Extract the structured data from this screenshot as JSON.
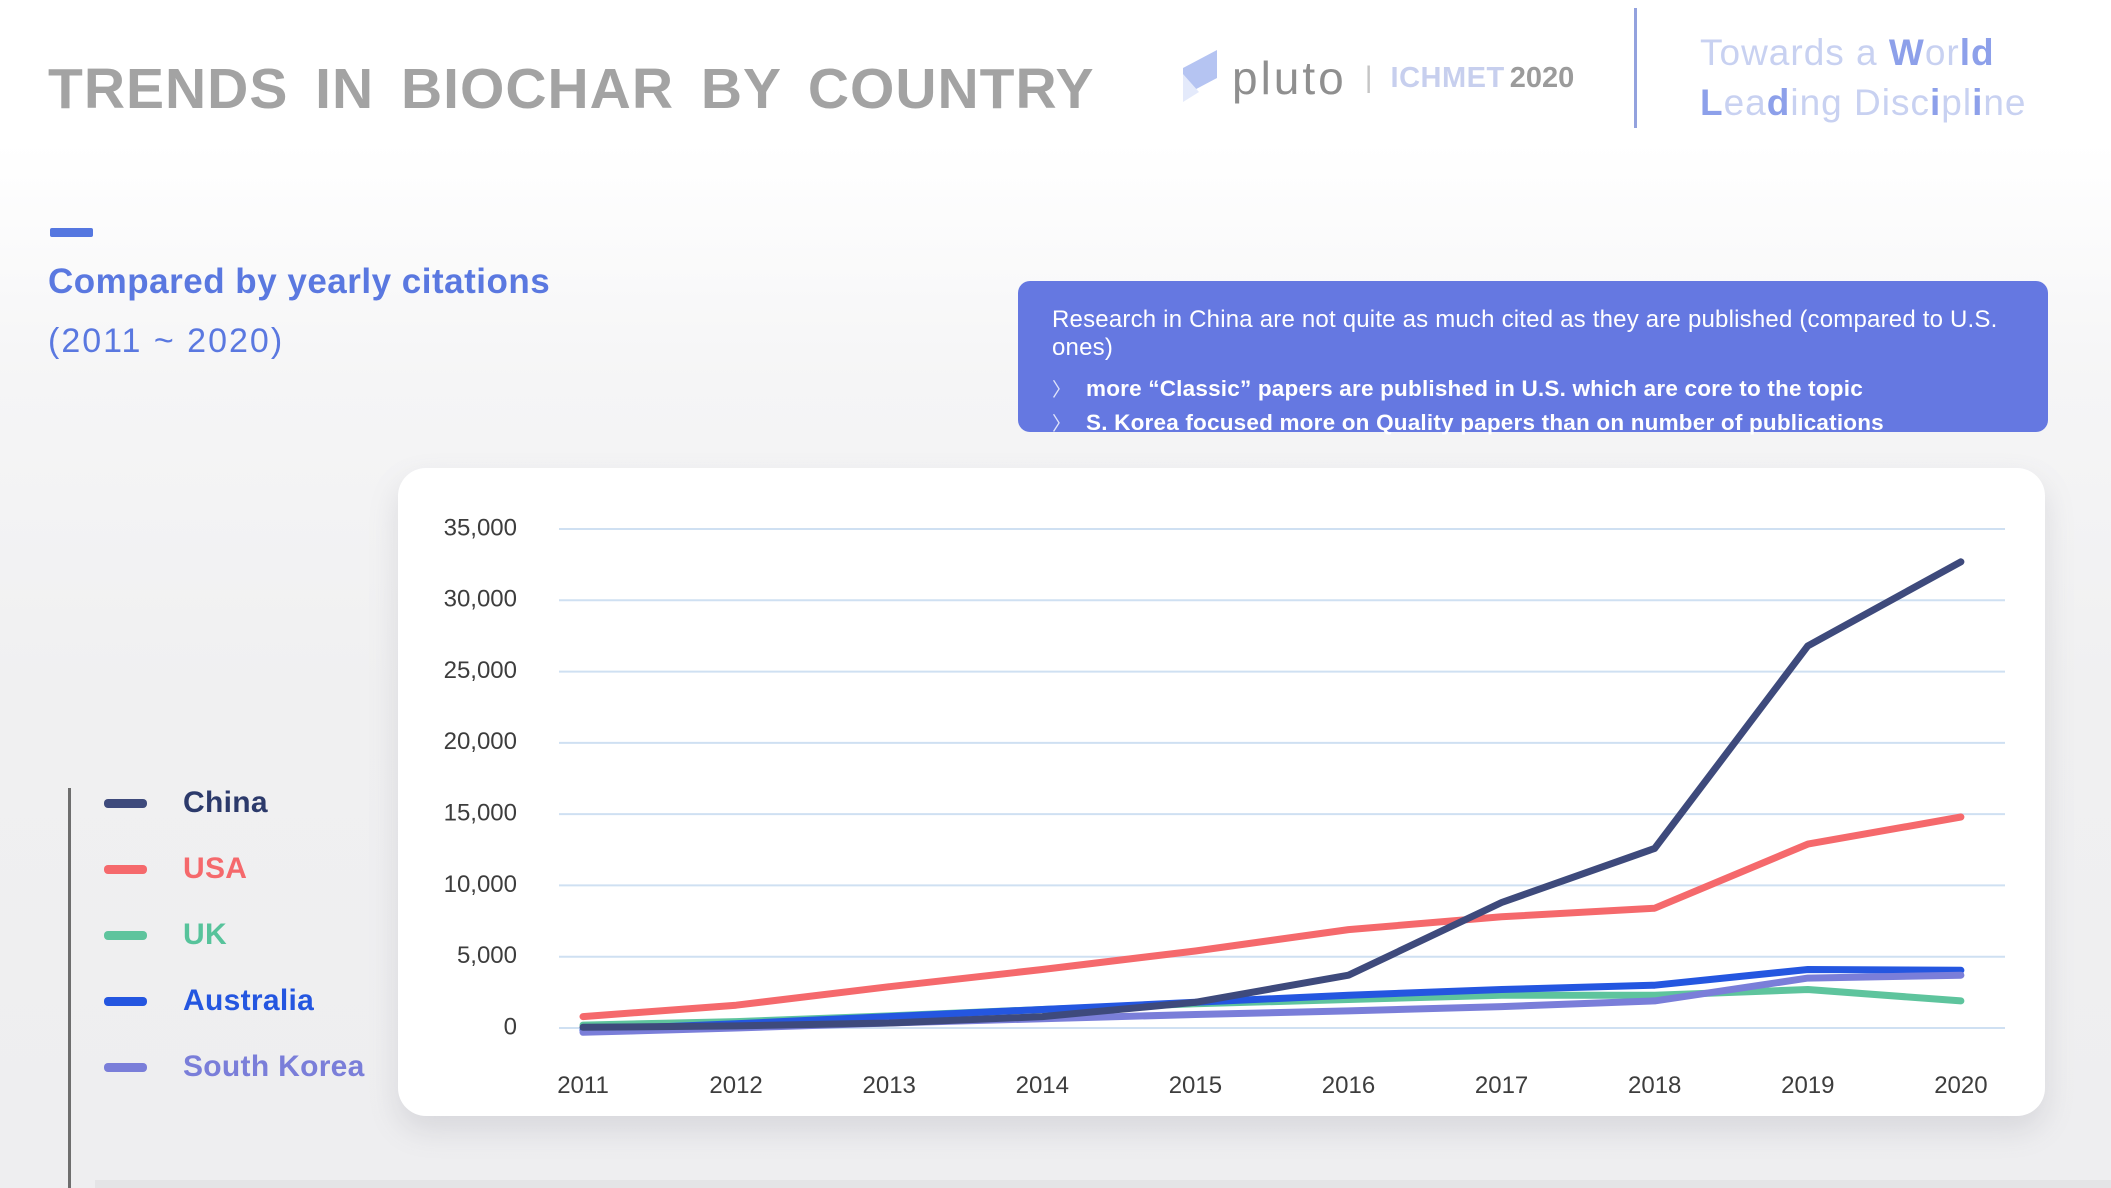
{
  "header": {
    "title": "TRENDS IN BIOCHAR BY COUNTRY",
    "logo": {
      "icon": "pluto-flag-icon",
      "name": "pluto",
      "divider": "|",
      "event": "ICHMET",
      "year": "2020"
    },
    "tagline": {
      "light_color": "#c8d1f1",
      "dark_color": "#8da0ea",
      "line1": [
        {
          "text": "Towards a ",
          "tone": "light"
        },
        {
          "text": "W",
          "tone": "dark"
        },
        {
          "text": "or",
          "tone": "light"
        },
        {
          "text": "ld",
          "tone": "dark"
        }
      ],
      "line2": [
        {
          "text": "L",
          "tone": "dark"
        },
        {
          "text": "ea",
          "tone": "light"
        },
        {
          "text": "d",
          "tone": "dark"
        },
        {
          "text": "ing ",
          "tone": "light"
        },
        {
          "text": "Disc",
          "tone": "light"
        },
        {
          "text": "i",
          "tone": "dark"
        },
        {
          "text": "pl",
          "tone": "light"
        },
        {
          "text": "i",
          "tone": "dark"
        },
        {
          "text": "ne",
          "tone": "light"
        }
      ]
    }
  },
  "subheader": {
    "heading": "Compared by yearly citations",
    "range": "(2011 ~ 2020)",
    "accent_color": "#5577e0"
  },
  "callout": {
    "bg_color": "#6578e1",
    "title": "Research in China are not quite as much cited as they are published (compared to U.S. ones)",
    "bullet_icon": "〉",
    "bullets": [
      "more “Classic” papers are published in U.S. which are core to the topic",
      "S. Korea focused more on Quality papers than on number of publications"
    ]
  },
  "chart_data": {
    "type": "line",
    "x": [
      2011,
      2012,
      2013,
      2014,
      2015,
      2016,
      2017,
      2018,
      2019,
      2020
    ],
    "series": [
      {
        "name": "UK",
        "color": "#5ec49d",
        "values": [
          200,
          450,
          850,
          1300,
          1700,
          2000,
          2300,
          2300,
          2700,
          1900
        ]
      },
      {
        "name": "Australia",
        "color": "#2456e0",
        "values": [
          -150,
          300,
          800,
          1300,
          1800,
          2300,
          2700,
          3000,
          4100,
          4050
        ]
      },
      {
        "name": "South Korea",
        "color": "#7a7ed9",
        "values": [
          -300,
          0,
          350,
          650,
          950,
          1200,
          1500,
          1900,
          3500,
          3700
        ]
      },
      {
        "name": "USA",
        "color": "#f5696c",
        "values": [
          800,
          1600,
          2900,
          4100,
          5400,
          6900,
          7800,
          8400,
          12900,
          14800
        ]
      },
      {
        "name": "China",
        "color": "#3e4a7c",
        "values": [
          50,
          150,
          350,
          800,
          1800,
          3700,
          8800,
          12600,
          26800,
          32700
        ]
      }
    ],
    "ylim": [
      0,
      35000
    ],
    "ytick_step": 5000,
    "grid": true,
    "gridline_color": "#cfe0f2",
    "tick_label_color": "#3d3d3d",
    "legend_position": "left",
    "legend_order": [
      "China",
      "USA",
      "UK",
      "Australia",
      "South Korea"
    ],
    "legend_label_colors": {
      "China": "#2c3a6b",
      "USA": "#f5696c",
      "UK": "#57c39b",
      "Australia": "#2456e0",
      "South Korea": "#7a7ed9"
    }
  }
}
